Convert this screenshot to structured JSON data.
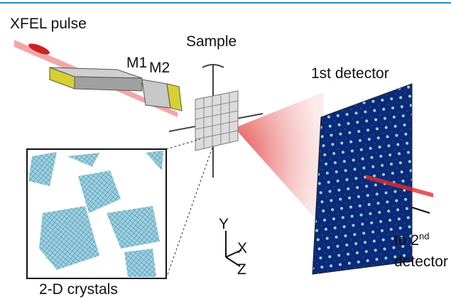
{
  "labels": {
    "xfel": "XFEL pulse",
    "m1": "M1",
    "m2": "M2",
    "sample": "Sample",
    "detector1": "1st detector",
    "to_second": {
      "prefix": "to 2",
      "sup": "nd",
      "line2": "detector"
    },
    "inset": "2-D crystals",
    "axes": {
      "y": "Y",
      "x": "X",
      "z": "Z"
    }
  }
}
